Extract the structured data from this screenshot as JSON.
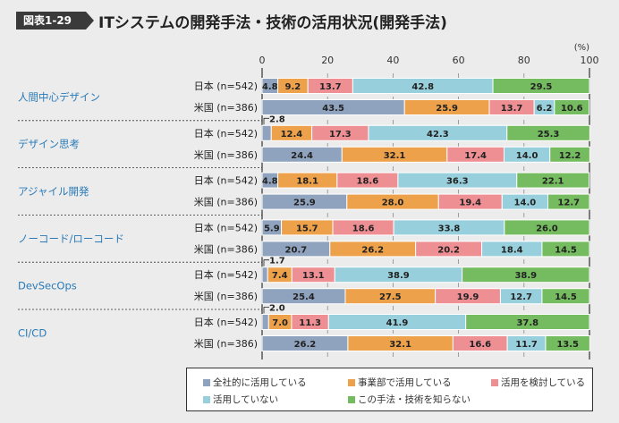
{
  "header": {
    "badge": "図表1-29",
    "title": "ITシステムの開発手法・技術の活用状況(開発手法)"
  },
  "chart_data": {
    "type": "bar",
    "orientation": "horizontal-stacked-100",
    "unit_label": "(%)",
    "xlim": [
      0,
      100
    ],
    "xticks": [
      0,
      20,
      40,
      60,
      80,
      100
    ],
    "grid": true,
    "legend_position": "bottom",
    "series": [
      {
        "name": "全社的に活用している",
        "color": "#8fa3bf"
      },
      {
        "name": "事業部で活用している",
        "color": "#eda14a"
      },
      {
        "name": "活用を検討している",
        "color": "#ee8f94"
      },
      {
        "name": "活用していない",
        "color": "#97cfdc"
      },
      {
        "name": "この手法・技術を知らない",
        "color": "#74bc5f"
      }
    ],
    "groups": [
      {
        "category": "人間中心デザイン",
        "rows": [
          {
            "label": "日本 (n=542)",
            "values": [
              4.8,
              9.2,
              13.7,
              42.8,
              29.5
            ]
          },
          {
            "label": "米国 (n=386)",
            "values": [
              43.5,
              25.9,
              13.7,
              6.2,
              10.6
            ]
          }
        ]
      },
      {
        "category": "デザイン思考",
        "rows": [
          {
            "label": "日本 (n=542)",
            "values": [
              2.8,
              12.4,
              17.3,
              42.3,
              25.3
            ]
          },
          {
            "label": "米国 (n=386)",
            "values": [
              24.4,
              32.1,
              17.4,
              14.0,
              12.2
            ]
          }
        ]
      },
      {
        "category": "アジャイル開発",
        "rows": [
          {
            "label": "日本 (n=542)",
            "values": [
              4.8,
              18.1,
              18.6,
              36.3,
              22.1
            ]
          },
          {
            "label": "米国 (n=386)",
            "values": [
              25.9,
              28.0,
              19.4,
              14.0,
              12.7
            ]
          }
        ]
      },
      {
        "category": "ノーコード/ローコード",
        "rows": [
          {
            "label": "日本 (n=542)",
            "values": [
              5.9,
              15.7,
              18.6,
              33.8,
              26.0
            ]
          },
          {
            "label": "米国 (n=386)",
            "values": [
              20.7,
              26.2,
              20.2,
              18.4,
              14.5
            ]
          }
        ]
      },
      {
        "category": "DevSecOps",
        "rows": [
          {
            "label": "日本 (n=542)",
            "values": [
              1.7,
              7.4,
              13.1,
              38.9,
              38.9
            ]
          },
          {
            "label": "米国 (n=386)",
            "values": [
              25.4,
              27.5,
              19.9,
              12.7,
              14.5
            ]
          }
        ]
      },
      {
        "category": "CI/CD",
        "rows": [
          {
            "label": "日本 (n=542)",
            "values": [
              2.0,
              7.0,
              11.3,
              41.9,
              37.8
            ]
          },
          {
            "label": "米国 (n=386)",
            "values": [
              26.2,
              32.1,
              16.6,
              11.7,
              13.5
            ]
          }
        ]
      }
    ]
  }
}
